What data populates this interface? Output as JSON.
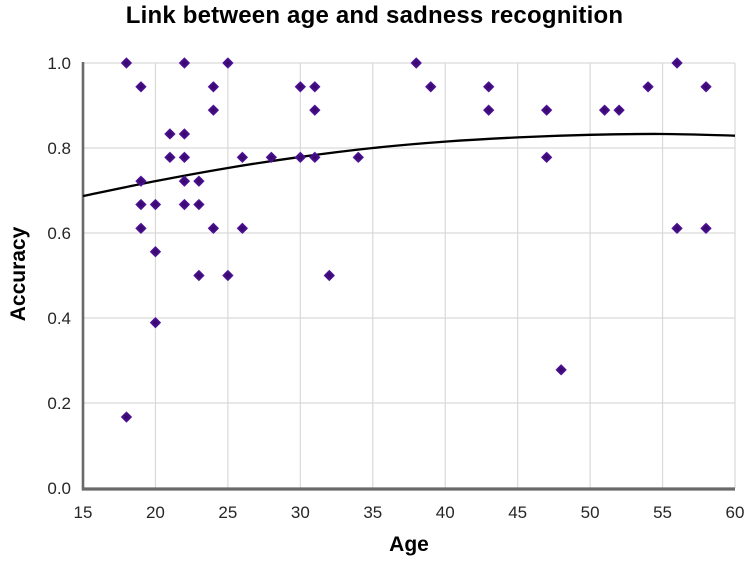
{
  "chart_data": {
    "type": "scatter",
    "title": "Link between age and sadness recognition",
    "xlabel": "Age",
    "ylabel": "Accuracy",
    "xlim": [
      15,
      60
    ],
    "ylim": [
      0.0,
      1.0
    ],
    "x_ticks": [
      15,
      20,
      25,
      30,
      35,
      40,
      45,
      50,
      55,
      60
    ],
    "y_ticks": [
      0.0,
      0.2,
      0.4,
      0.6,
      0.8,
      1.0
    ],
    "y_tick_labels": [
      "0.0",
      "0.2",
      "0.4",
      "0.6",
      "0.8",
      "1.0"
    ],
    "grid": true,
    "legend": "none",
    "marker": "diamond",
    "colors": {
      "marker_center": "#31085f",
      "marker_mid": "#4c0f95",
      "marker_edge": "#8040c8",
      "trend_line": "#000000",
      "gridline": "#d9d9d9",
      "axis": "#6a6a6a",
      "tick_text": "#262626"
    },
    "points": [
      [
        18,
        1.0
      ],
      [
        18,
        0.167
      ],
      [
        19,
        0.944
      ],
      [
        19,
        0.722
      ],
      [
        19,
        0.667
      ],
      [
        19,
        0.611
      ],
      [
        20,
        0.667
      ],
      [
        20,
        0.556
      ],
      [
        20,
        0.389
      ],
      [
        21,
        0.833
      ],
      [
        21,
        0.778
      ],
      [
        22,
        1.0
      ],
      [
        22,
        0.833
      ],
      [
        22,
        0.778
      ],
      [
        22,
        0.722
      ],
      [
        22,
        0.667
      ],
      [
        23,
        0.722
      ],
      [
        23,
        0.667
      ],
      [
        23,
        0.5
      ],
      [
        24,
        0.944
      ],
      [
        24,
        0.889
      ],
      [
        24,
        0.611
      ],
      [
        25,
        1.0
      ],
      [
        25,
        0.5
      ],
      [
        26,
        0.778
      ],
      [
        26,
        0.611
      ],
      [
        28,
        0.778
      ],
      [
        30,
        0.944
      ],
      [
        30,
        0.778
      ],
      [
        31,
        0.944
      ],
      [
        31,
        0.889
      ],
      [
        31,
        0.778
      ],
      [
        32,
        0.5
      ],
      [
        34,
        0.778
      ],
      [
        38,
        1.0
      ],
      [
        39,
        0.944
      ],
      [
        43,
        0.944
      ],
      [
        43,
        0.889
      ],
      [
        47,
        0.889
      ],
      [
        47,
        0.778
      ],
      [
        48,
        0.278
      ],
      [
        51,
        0.889
      ],
      [
        52,
        0.889
      ],
      [
        54,
        0.944
      ],
      [
        56,
        1.0
      ],
      [
        56,
        0.611
      ],
      [
        58,
        0.944
      ],
      [
        58,
        0.611
      ]
    ],
    "trend": {
      "type": "smooth-curve",
      "points": [
        [
          15,
          0.687
        ],
        [
          20,
          0.722
        ],
        [
          25,
          0.753
        ],
        [
          30,
          0.779
        ],
        [
          35,
          0.8
        ],
        [
          40,
          0.815
        ],
        [
          45,
          0.825
        ],
        [
          50,
          0.831
        ],
        [
          55,
          0.833
        ],
        [
          60,
          0.829
        ]
      ]
    }
  }
}
